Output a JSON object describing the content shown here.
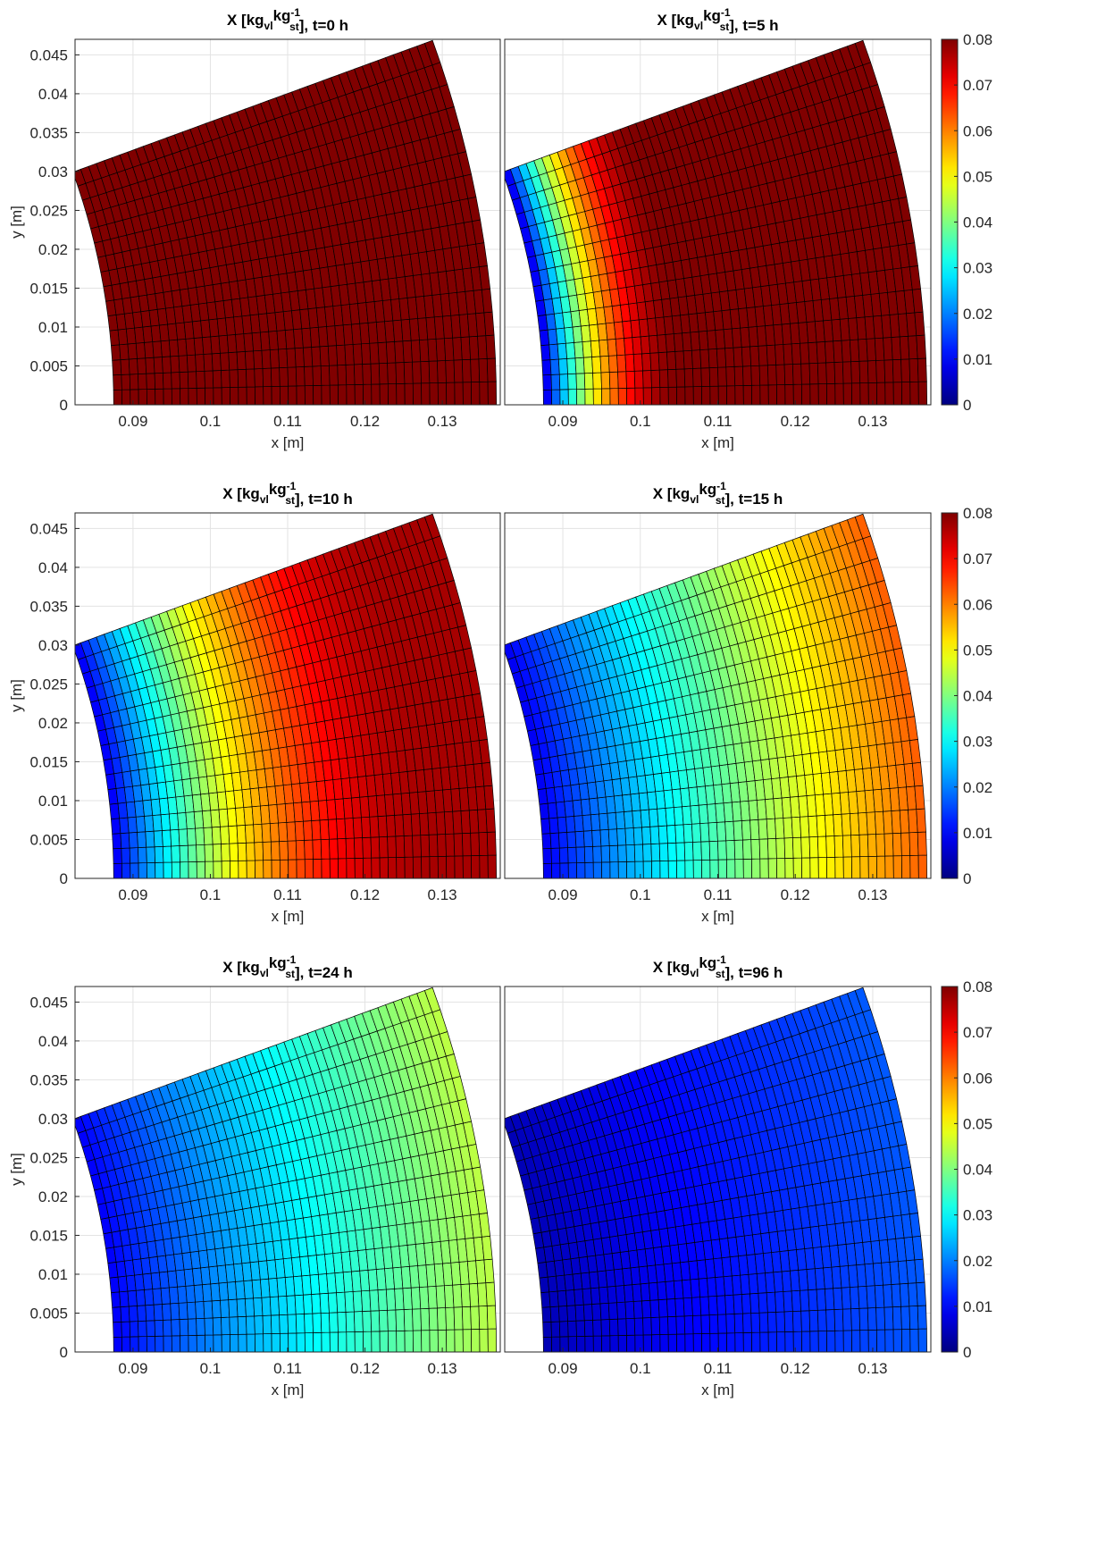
{
  "figure": {
    "ylabel": "y [m]",
    "xlabel": "x [m]",
    "colorbar": {
      "colormap": "jet",
      "range": [
        0,
        0.08
      ],
      "ticks": [
        "0",
        "0.01",
        "0.02",
        "0.03",
        "0.04",
        "0.05",
        "0.06",
        "0.07",
        "0.08"
      ]
    },
    "grid": true
  },
  "chart_data": [
    {
      "type": "heatmap",
      "title_base": "X [kg",
      "title_sub1": "vl",
      "title_mid": "kg",
      "title_sup": "-1",
      "title_sub2": "st",
      "title_end": "], t=0 h",
      "xlim": [
        0.0825,
        0.1375
      ],
      "ylim": [
        0,
        0.047
      ],
      "xticks": [
        "0.09",
        "0.1",
        "0.11",
        "0.12",
        "0.13"
      ],
      "yticks": [
        "0",
        "0.005",
        "0.01",
        "0.015",
        "0.02",
        "0.025",
        "0.03",
        "0.035",
        "0.04",
        "0.045"
      ],
      "geometry": {
        "r_inner": 0.0875,
        "r_outer": 0.137,
        "angle_max_deg": 20
      },
      "mesh": {
        "radial_cells": 46,
        "angular_cells": 16
      },
      "field": {
        "at_inner": 0.08,
        "at_outer": 0.08,
        "peak": 0.08
      }
    },
    {
      "type": "heatmap",
      "title_base": "X [kg",
      "title_sub1": "vl",
      "title_mid": "kg",
      "title_sup": "-1",
      "title_sub2": "st",
      "title_end": "], t=5 h",
      "xlim": [
        0.0825,
        0.1375
      ],
      "ylim": [
        0,
        0.047
      ],
      "xticks": [
        "0.09",
        "0.1",
        "0.11",
        "0.12",
        "0.13"
      ],
      "yticks": [
        "0",
        "0.005",
        "0.01",
        "0.015",
        "0.02",
        "0.025",
        "0.03",
        "0.035",
        "0.04",
        "0.045"
      ],
      "geometry": {
        "r_inner": 0.0875,
        "r_outer": 0.137,
        "angle_max_deg": 20
      },
      "mesh": {
        "radial_cells": 46,
        "angular_cells": 16
      },
      "field": {
        "at_inner": 0.005,
        "at_outer": 0.08,
        "penetration_depth_m": 0.018
      }
    },
    {
      "type": "heatmap",
      "title_base": "X [kg",
      "title_sub1": "vl",
      "title_mid": "kg",
      "title_sup": "-1",
      "title_sub2": "st",
      "title_end": "], t=10 h",
      "xlim": [
        0.0825,
        0.1375
      ],
      "ylim": [
        0,
        0.047
      ],
      "xticks": [
        "0.09",
        "0.1",
        "0.11",
        "0.12",
        "0.13"
      ],
      "yticks": [
        "0",
        "0.005",
        "0.01",
        "0.015",
        "0.02",
        "0.025",
        "0.03",
        "0.035",
        "0.04",
        "0.045"
      ],
      "geometry": {
        "r_inner": 0.0875,
        "r_outer": 0.137,
        "angle_max_deg": 20
      },
      "mesh": {
        "radial_cells": 46,
        "angular_cells": 16
      },
      "field": {
        "at_inner": 0.008,
        "at_outer": 0.077,
        "penetration_depth_m": 0.042
      }
    },
    {
      "type": "heatmap",
      "title_base": "X [kg",
      "title_sub1": "vl",
      "title_mid": "kg",
      "title_sup": "-1",
      "title_sub2": "st",
      "title_end": "], t=15 h",
      "xlim": [
        0.0825,
        0.1375
      ],
      "ylim": [
        0,
        0.047
      ],
      "xticks": [
        "0.09",
        "0.1",
        "0.11",
        "0.12",
        "0.13"
      ],
      "yticks": [
        "0",
        "0.005",
        "0.01",
        "0.015",
        "0.02",
        "0.025",
        "0.03",
        "0.035",
        "0.04",
        "0.045"
      ],
      "geometry": {
        "r_inner": 0.0875,
        "r_outer": 0.137,
        "angle_max_deg": 20
      },
      "mesh": {
        "radial_cells": 46,
        "angular_cells": 16
      },
      "field": {
        "at_inner": 0.008,
        "at_outer": 0.063
      }
    },
    {
      "type": "heatmap",
      "title_base": "X [kg",
      "title_sub1": "vl",
      "title_mid": "kg",
      "title_sup": "-1",
      "title_sub2": "st",
      "title_end": "], t=24 h",
      "xlim": [
        0.0825,
        0.1375
      ],
      "ylim": [
        0,
        0.047
      ],
      "xticks": [
        "0.09",
        "0.1",
        "0.11",
        "0.12",
        "0.13"
      ],
      "yticks": [
        "0",
        "0.005",
        "0.01",
        "0.015",
        "0.02",
        "0.025",
        "0.03",
        "0.035",
        "0.04",
        "0.045"
      ],
      "geometry": {
        "r_inner": 0.0875,
        "r_outer": 0.137,
        "angle_max_deg": 20
      },
      "mesh": {
        "radial_cells": 46,
        "angular_cells": 16
      },
      "field": {
        "at_inner": 0.009,
        "at_outer": 0.045
      }
    },
    {
      "type": "heatmap",
      "title_base": "X [kg",
      "title_sub1": "vl",
      "title_mid": "kg",
      "title_sup": "-1",
      "title_sub2": "st",
      "title_end": "], t=96 h",
      "xlim": [
        0.0825,
        0.1375
      ],
      "ylim": [
        0,
        0.047
      ],
      "xticks": [
        "0.09",
        "0.1",
        "0.11",
        "0.12",
        "0.13"
      ],
      "yticks": [
        "0",
        "0.005",
        "0.01",
        "0.015",
        "0.02",
        "0.025",
        "0.03",
        "0.035",
        "0.04",
        "0.045"
      ],
      "geometry": {
        "r_inner": 0.0875,
        "r_outer": 0.137,
        "angle_max_deg": 20
      },
      "mesh": {
        "radial_cells": 46,
        "angular_cells": 16
      },
      "field": {
        "at_inner": 0.004,
        "at_outer": 0.017
      }
    }
  ]
}
